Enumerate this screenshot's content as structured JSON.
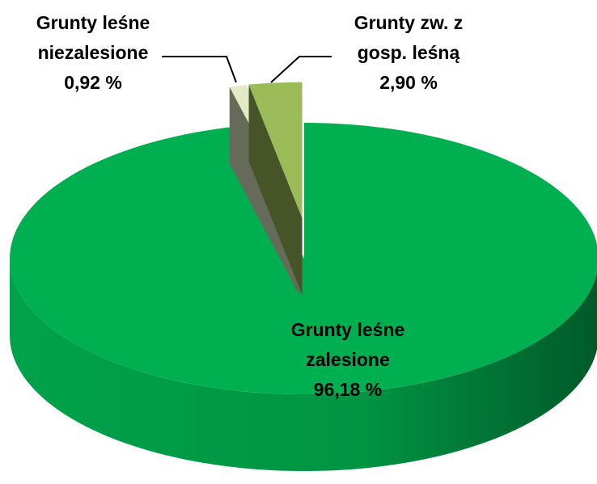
{
  "chart_data": {
    "type": "pie",
    "categories": [
      "Grunty leśne\nzalesione",
      "Grunty leśne\nniezalesione",
      "Grunty zw. z\ngosp. leśną"
    ],
    "values": [
      96.18,
      0.92,
      2.9
    ],
    "value_labels": [
      "96,18 %",
      "0,92 %",
      "2,90 %"
    ],
    "colors": [
      "#00b050",
      "#e3ebc6",
      "#9bbb59"
    ]
  }
}
